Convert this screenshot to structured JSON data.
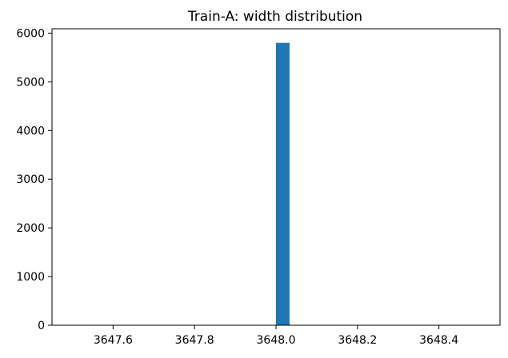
{
  "chart_data": {
    "type": "bar",
    "title": "Train-A: width distribution",
    "xlabel": "",
    "ylabel": "",
    "xlim": [
      3647.45,
      3648.55
    ],
    "ylim": [
      0,
      6090
    ],
    "xticks": [
      3647.6,
      3647.8,
      3648.0,
      3648.2,
      3648.4
    ],
    "xtick_labels": [
      "3647.6",
      "3647.8",
      "3648.0",
      "3648.2",
      "3648.4"
    ],
    "yticks": [
      0,
      1000,
      2000,
      3000,
      4000,
      5000,
      6000
    ],
    "ytick_labels": [
      "0",
      "1000",
      "2000",
      "3000",
      "4000",
      "5000",
      "6000"
    ],
    "bins": [
      {
        "x0": 3648.0,
        "x1": 3648.0333,
        "count": 5800
      }
    ],
    "bar_color": "#1f77b4",
    "grid": false
  }
}
